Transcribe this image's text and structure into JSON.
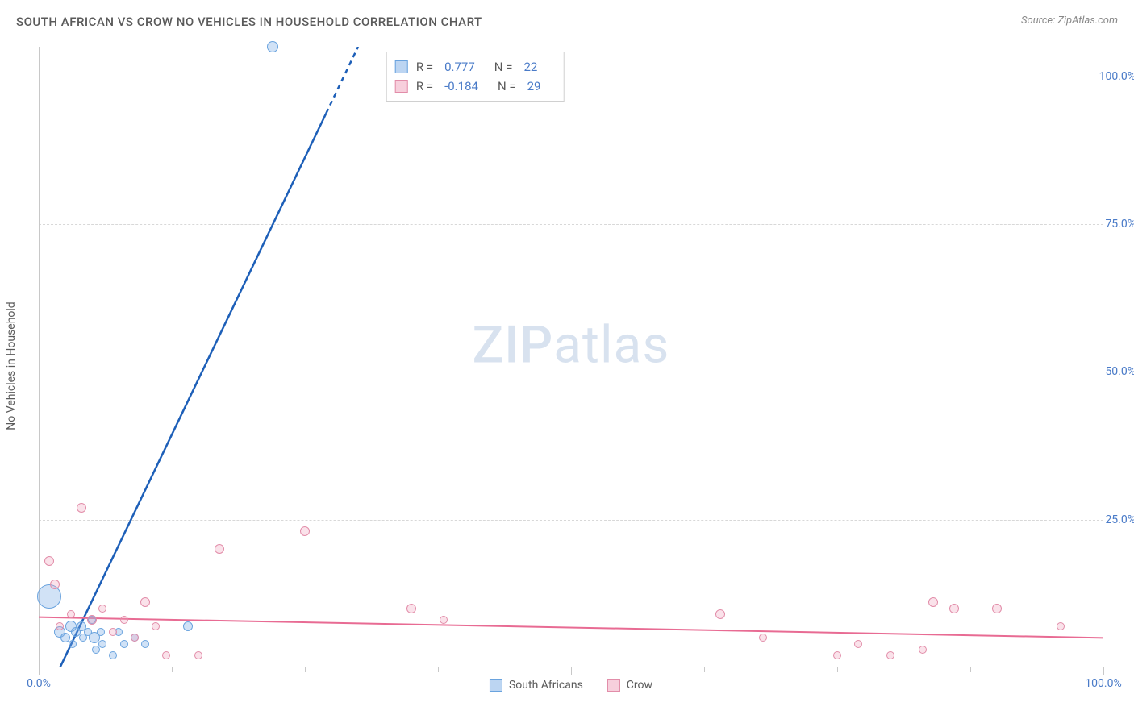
{
  "title": "SOUTH AFRICAN VS CROW NO VEHICLES IN HOUSEHOLD CORRELATION CHART",
  "source_label": "Source:",
  "source_value": "ZipAtlas.com",
  "y_axis_label": "No Vehicles in Household",
  "watermark_bold": "ZIP",
  "watermark_rest": "atlas",
  "chart": {
    "type": "scatter",
    "xlim": [
      0,
      100
    ],
    "ylim": [
      0,
      105
    ],
    "x_ticks": [
      0,
      50,
      100
    ],
    "x_tick_labels": [
      "0.0%",
      "",
      "100.0%"
    ],
    "x_minor_ticks": [
      12.5,
      25,
      37.5,
      62.5,
      75,
      87.5
    ],
    "y_ticks": [
      25,
      50,
      75,
      100
    ],
    "y_tick_labels": [
      "25.0%",
      "50.0%",
      "75.0%",
      "100.0%"
    ],
    "grid_color": "#d8d8d8",
    "axis_color": "#c8c8c8",
    "background_color": "#ffffff",
    "tick_label_color": "#4a7bc8",
    "text_color": "#5a5a5a"
  },
  "series": [
    {
      "name": "South Africans",
      "key": "blue",
      "fill_color": "rgba(122,172,230,0.35)",
      "stroke_color": "#6aa3de",
      "trend_color": "#1d5fb8",
      "trend_width": 2.5,
      "trend": {
        "x1": 2,
        "y1": 0,
        "x2": 30,
        "y2": 105,
        "dash_from_x": 27
      },
      "points": [
        {
          "x": 1,
          "y": 12,
          "r": 30
        },
        {
          "x": 2,
          "y": 6,
          "r": 14
        },
        {
          "x": 2.5,
          "y": 5,
          "r": 12
        },
        {
          "x": 3,
          "y": 7,
          "r": 14
        },
        {
          "x": 3.2,
          "y": 4,
          "r": 10
        },
        {
          "x": 3.5,
          "y": 6,
          "r": 12
        },
        {
          "x": 4,
          "y": 7,
          "r": 12
        },
        {
          "x": 4.2,
          "y": 5,
          "r": 10
        },
        {
          "x": 4.6,
          "y": 6,
          "r": 10
        },
        {
          "x": 5,
          "y": 8,
          "r": 10
        },
        {
          "x": 5.2,
          "y": 5,
          "r": 14
        },
        {
          "x": 5.4,
          "y": 3,
          "r": 10
        },
        {
          "x": 5.8,
          "y": 6,
          "r": 10
        },
        {
          "x": 6,
          "y": 4,
          "r": 10
        },
        {
          "x": 7,
          "y": 2,
          "r": 10
        },
        {
          "x": 7.5,
          "y": 6,
          "r": 10
        },
        {
          "x": 8,
          "y": 4,
          "r": 10
        },
        {
          "x": 9,
          "y": 5,
          "r": 10
        },
        {
          "x": 10,
          "y": 4,
          "r": 10
        },
        {
          "x": 14,
          "y": 7,
          "r": 12
        },
        {
          "x": 22,
          "y": 105,
          "r": 14
        }
      ]
    },
    {
      "name": "Crow",
      "key": "pink",
      "fill_color": "rgba(240,160,185,0.30)",
      "stroke_color": "#e28da9",
      "trend_color": "#e86b93",
      "trend_width": 2,
      "trend": {
        "x1": 0,
        "y1": 8.5,
        "x2": 100,
        "y2": 5
      },
      "points": [
        {
          "x": 1,
          "y": 18,
          "r": 12
        },
        {
          "x": 1.5,
          "y": 14,
          "r": 12
        },
        {
          "x": 2,
          "y": 7,
          "r": 10
        },
        {
          "x": 3,
          "y": 9,
          "r": 10
        },
        {
          "x": 4,
          "y": 27,
          "r": 12
        },
        {
          "x": 5,
          "y": 8,
          "r": 12
        },
        {
          "x": 6,
          "y": 10,
          "r": 10
        },
        {
          "x": 7,
          "y": 6,
          "r": 10
        },
        {
          "x": 8,
          "y": 8,
          "r": 10
        },
        {
          "x": 9,
          "y": 5,
          "r": 10
        },
        {
          "x": 10,
          "y": 11,
          "r": 12
        },
        {
          "x": 11,
          "y": 7,
          "r": 10
        },
        {
          "x": 12,
          "y": 2,
          "r": 10
        },
        {
          "x": 15,
          "y": 2,
          "r": 10
        },
        {
          "x": 17,
          "y": 20,
          "r": 12
        },
        {
          "x": 25,
          "y": 23,
          "r": 12
        },
        {
          "x": 35,
          "y": 10,
          "r": 12
        },
        {
          "x": 38,
          "y": 8,
          "r": 10
        },
        {
          "x": 64,
          "y": 9,
          "r": 12
        },
        {
          "x": 68,
          "y": 5,
          "r": 10
        },
        {
          "x": 75,
          "y": 2,
          "r": 10
        },
        {
          "x": 77,
          "y": 4,
          "r": 10
        },
        {
          "x": 80,
          "y": 2,
          "r": 10
        },
        {
          "x": 83,
          "y": 3,
          "r": 10
        },
        {
          "x": 84,
          "y": 11,
          "r": 12
        },
        {
          "x": 86,
          "y": 10,
          "r": 12
        },
        {
          "x": 90,
          "y": 10,
          "r": 12
        },
        {
          "x": 96,
          "y": 7,
          "r": 10
        }
      ]
    }
  ],
  "stats": [
    {
      "key": "blue",
      "r_label": "R =",
      "r_value": "0.777",
      "n_label": "N =",
      "n_value": "22"
    },
    {
      "key": "pink",
      "r_label": "R =",
      "r_value": "-0.184",
      "n_label": "N =",
      "n_value": "29"
    }
  ],
  "legend": {
    "series1": "South Africans",
    "series2": "Crow"
  }
}
